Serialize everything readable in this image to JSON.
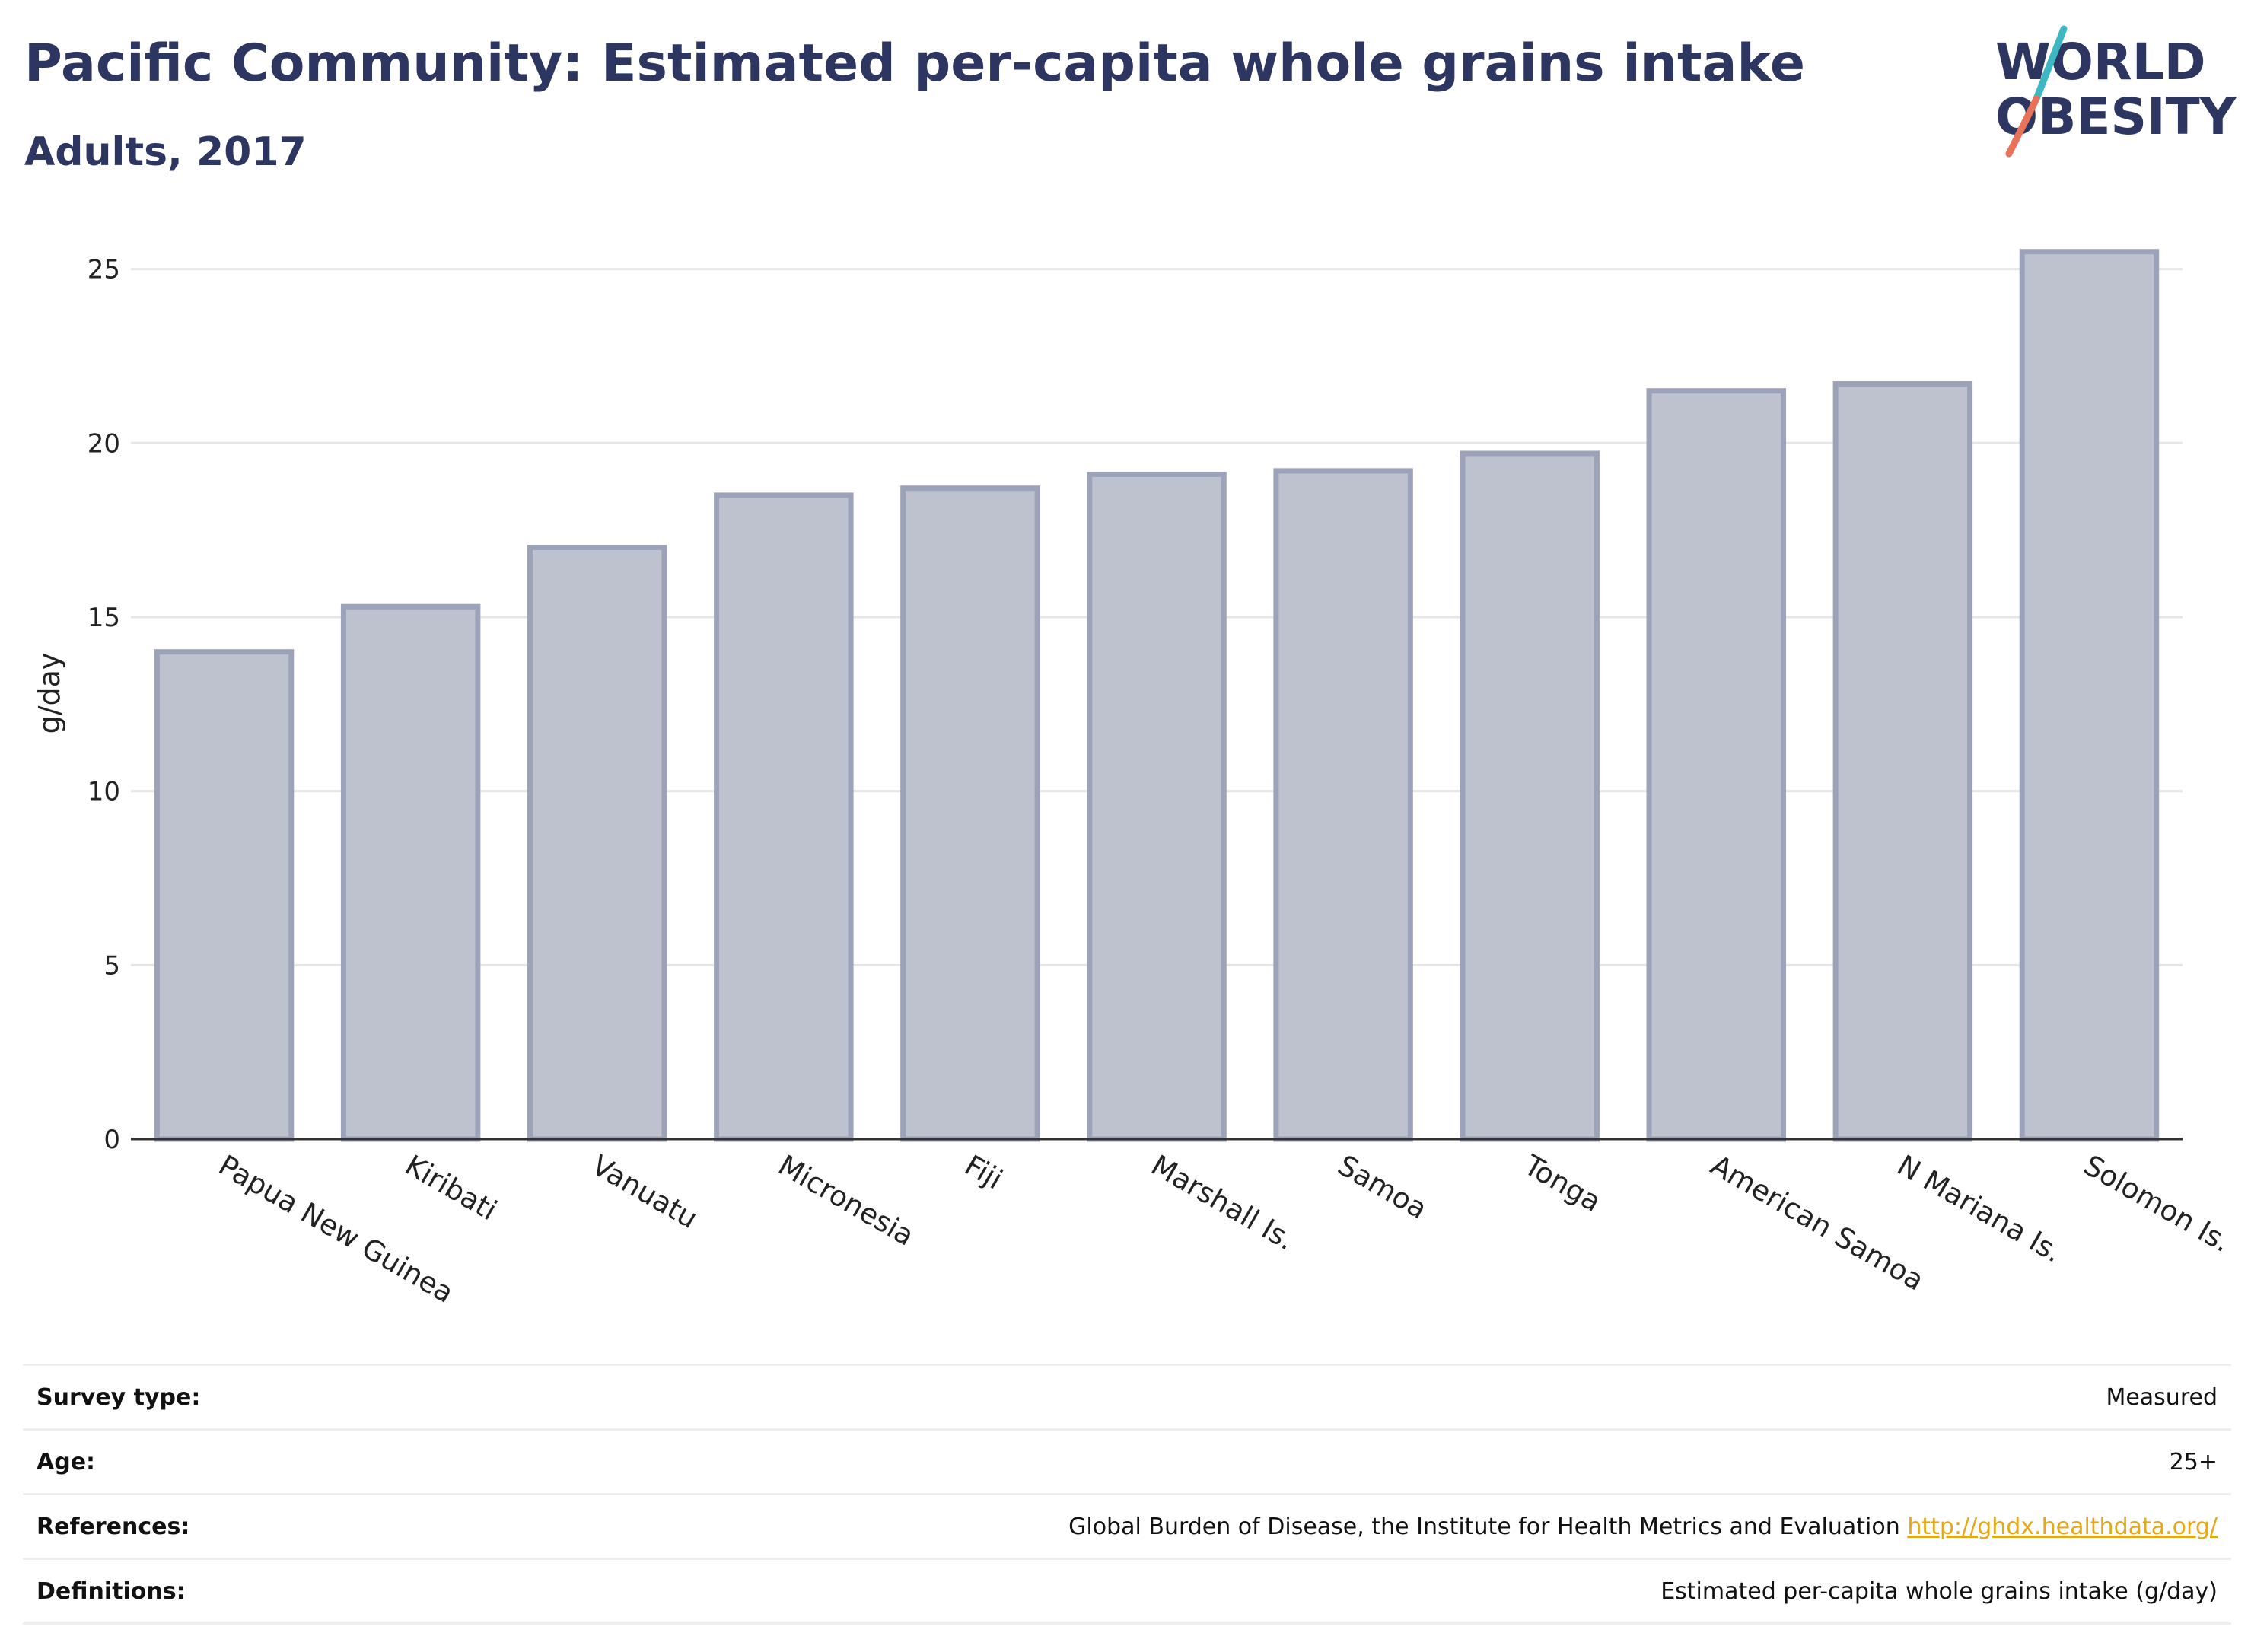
{
  "header": {
    "title": "Pacific Community: Estimated per-capita whole grains intake",
    "subtitle": "Adults, 2017"
  },
  "logo": {
    "line1": "WORLD",
    "line2": "OBESITY",
    "colors": {
      "text": "#2d3660",
      "slash_top": "#3bb8c3",
      "slash_bottom": "#e8735a"
    }
  },
  "chart_data": {
    "type": "bar",
    "categories": [
      "Papua New Guinea",
      "Kiribati",
      "Vanuatu",
      "Micronesia",
      "Fiji",
      "Marshall Is.",
      "Samoa",
      "Tonga",
      "American Samoa",
      "N Mariana Is.",
      "Solomon Is."
    ],
    "values": [
      14.0,
      15.3,
      17.0,
      18.5,
      18.7,
      19.1,
      19.2,
      19.7,
      21.5,
      21.7,
      25.5
    ],
    "title": "",
    "xlabel": "",
    "ylabel": "g/day",
    "ylim": [
      0,
      26.5
    ],
    "yticks": [
      0,
      5,
      10,
      15,
      20,
      25
    ],
    "grid": true,
    "colors": {
      "bar_fill": "#bec2cf",
      "bar_stroke": "#9ca2b8",
      "grid": "#e6e6e6",
      "axis": "#333333"
    }
  },
  "info": {
    "rows": [
      {
        "key": "Survey type:",
        "value": "Measured"
      },
      {
        "key": "Age:",
        "value": "25+"
      },
      {
        "key": "References:",
        "value": "Global Burden of Disease, the Institute for Health Metrics and Evaluation",
        "link": "http://ghdx.healthdata.org/"
      },
      {
        "key": "Definitions:",
        "value": "Estimated per-capita whole grains intake (g/day)"
      }
    ]
  }
}
